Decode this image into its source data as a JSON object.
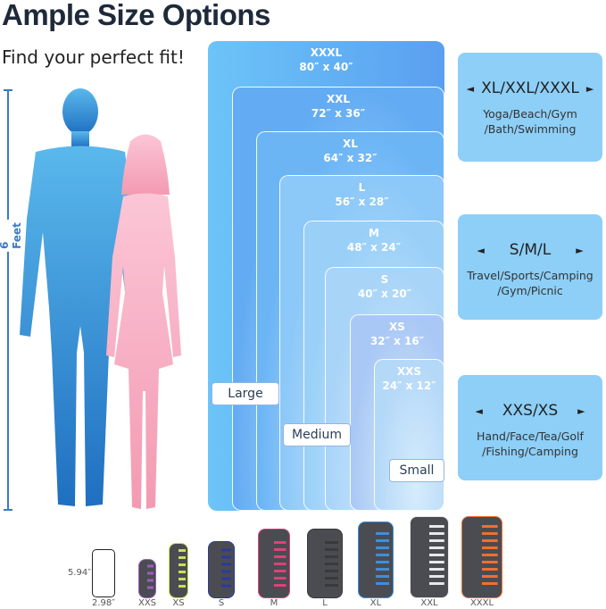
{
  "header": {
    "title": "Ample Size Options",
    "subtitle": "Find your perfect fit!"
  },
  "ruler": {
    "label": "6 Feet",
    "color": "#3b7cc0"
  },
  "colors": {
    "man": "#3a8fd8",
    "woman": "#f7b6c8",
    "box": "#5aa6f2",
    "card": "#8dcff7"
  },
  "sizes": [
    {
      "name": "XXXL",
      "dims": "80″ x 40″"
    },
    {
      "name": "XXL",
      "dims": "72″ x 36″"
    },
    {
      "name": "XL",
      "dims": "64″ x 32″"
    },
    {
      "name": "L",
      "dims": "56″ x 28″"
    },
    {
      "name": "M",
      "dims": "48″ x 24″"
    },
    {
      "name": "S",
      "dims": "40″ x 20″"
    },
    {
      "name": "XS",
      "dims": "32″ x 16″"
    },
    {
      "name": "XXS",
      "dims": "24″ x 12″"
    }
  ],
  "groups": {
    "large": "Large",
    "medium": "Medium",
    "small": "Small"
  },
  "cards": [
    {
      "heading": "XL/XXL/XXXL",
      "uses": [
        "Yoga/Beach/Gym",
        "/Bath/Swimming"
      ]
    },
    {
      "heading": "S/M/L",
      "uses": [
        "Travel/Sports/Camping",
        "/Gym/Picnic"
      ]
    },
    {
      "heading": "XXS/XS",
      "uses": [
        "Hand/Face/Tea/Golf",
        "/Fishing/Camping"
      ]
    }
  ],
  "phone": {
    "height": "5.94″",
    "width": "2.98″"
  },
  "pouches": [
    {
      "size": "XXS",
      "accent": "#a05cc0"
    },
    {
      "size": "XS",
      "accent": "#c8e05a"
    },
    {
      "size": "S",
      "accent": "#2c3a9a"
    },
    {
      "size": "M",
      "accent": "#e0407a"
    },
    {
      "size": "L",
      "accent": "#3a3a3a"
    },
    {
      "size": "XL",
      "accent": "#3a90e0"
    },
    {
      "size": "XXL",
      "accent": "#e8e8e8"
    },
    {
      "size": "XXXL",
      "accent": "#f07030"
    }
  ]
}
